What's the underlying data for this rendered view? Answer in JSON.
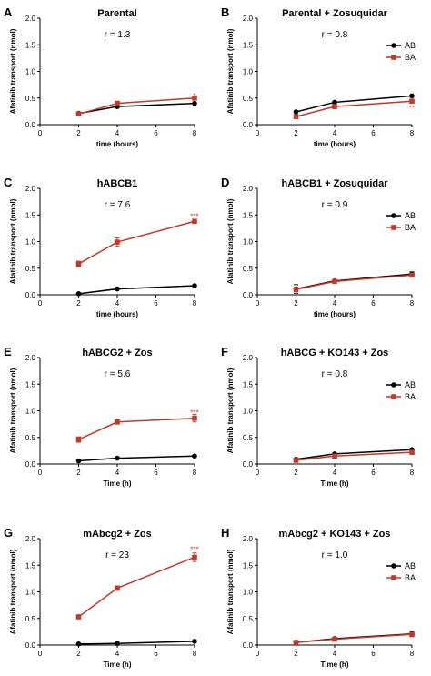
{
  "colors": {
    "AB": "#000000",
    "BA": "#c0392b"
  },
  "chart_data": [
    {
      "type": "line",
      "letter": "A",
      "title": "Parental",
      "ratio": "r = 1.3",
      "xlabel": "time (hours)",
      "ylabel": "Afatinib transport (nmol)",
      "xlim": [
        0,
        8
      ],
      "ylim": [
        0,
        2.0
      ],
      "xticks": [
        "0",
        "2",
        "4",
        "6",
        "8"
      ],
      "yticks": [
        "0.0",
        "0.5",
        "1.0",
        "1.5",
        "2.0"
      ],
      "legend": [],
      "series": [
        {
          "key": "AB",
          "x": [
            2,
            4,
            8
          ],
          "values": [
            0.21,
            0.34,
            0.4
          ],
          "err": [
            0,
            0,
            0
          ]
        },
        {
          "key": "BA",
          "x": [
            2,
            4,
            8
          ],
          "values": [
            0.2,
            0.4,
            0.5
          ],
          "err": [
            0,
            0.02,
            0.03
          ]
        }
      ],
      "annotations": [
        {
          "text": "*",
          "x": 8,
          "y": 0.55,
          "series": "BA"
        }
      ]
    },
    {
      "type": "line",
      "letter": "B",
      "title": "Parental + Zosuquidar",
      "ratio": "r = 0.8",
      "xlabel": "time (hours)",
      "ylabel": "Afatinib transport (nmol)",
      "xlim": [
        0,
        8
      ],
      "ylim": [
        0,
        2.0
      ],
      "xticks": [
        "0",
        "2",
        "4",
        "6",
        "8"
      ],
      "yticks": [
        "0.0",
        "0.5",
        "1.0",
        "1.5",
        "2.0"
      ],
      "legend": [
        "AB",
        "BA"
      ],
      "series": [
        {
          "key": "AB",
          "x": [
            2,
            4,
            8
          ],
          "values": [
            0.24,
            0.42,
            0.54
          ],
          "err": [
            0,
            0,
            0
          ]
        },
        {
          "key": "BA",
          "x": [
            2,
            4,
            8
          ],
          "values": [
            0.15,
            0.34,
            0.44
          ],
          "err": [
            0,
            0.04,
            0.02
          ]
        }
      ],
      "annotations": [
        {
          "text": "**",
          "x": 8,
          "y": 0.32,
          "series": "BA"
        }
      ]
    },
    {
      "type": "line",
      "letter": "C",
      "title": "hABCB1",
      "ratio": "r = 7.6",
      "xlabel": "time (hours)",
      "ylabel": "Afatinib transport (nmol)",
      "xlim": [
        0,
        8
      ],
      "ylim": [
        0,
        2.0
      ],
      "xticks": [
        "0",
        "2",
        "4",
        "6",
        "8"
      ],
      "yticks": [
        "0.0",
        "0.5",
        "1.0",
        "1.5",
        "2.0"
      ],
      "legend": [],
      "series": [
        {
          "key": "AB",
          "x": [
            2,
            4,
            8
          ],
          "values": [
            0.02,
            0.11,
            0.17
          ],
          "err": [
            0,
            0,
            0
          ]
        },
        {
          "key": "BA",
          "x": [
            2,
            4,
            8
          ],
          "values": [
            0.58,
            0.99,
            1.38
          ],
          "err": [
            0.05,
            0.08,
            0.03
          ]
        }
      ],
      "annotations": [
        {
          "text": "***",
          "x": 8,
          "y": 1.48,
          "series": "BA"
        }
      ]
    },
    {
      "type": "line",
      "letter": "D",
      "title": "hABCB1 + Zosuquidar",
      "ratio": "r = 0.9",
      "xlabel": "time (hours)",
      "ylabel": "Afatinib transport (nmol)",
      "xlim": [
        0,
        8
      ],
      "ylim": [
        0,
        2.0
      ],
      "xticks": [
        "0",
        "2",
        "4",
        "6",
        "8"
      ],
      "yticks": [
        "0.0",
        "0.5",
        "1.0",
        "1.5",
        "2.0"
      ],
      "legend": [
        "AB",
        "BA"
      ],
      "series": [
        {
          "key": "AB",
          "x": [
            2,
            4,
            8
          ],
          "values": [
            0.11,
            0.26,
            0.39
          ],
          "err": [
            0.08,
            0.02,
            0.04
          ]
        },
        {
          "key": "BA",
          "x": [
            2,
            4,
            8
          ],
          "values": [
            0.1,
            0.25,
            0.37
          ],
          "err": [
            0.04,
            0.02,
            0.03
          ]
        }
      ],
      "annotations": []
    },
    {
      "type": "line",
      "letter": "E",
      "title": "hABCG2 + Zos",
      "ratio": "r = 5.6",
      "xlabel": "Time (h)",
      "ylabel": "Afatinib transport (nmol)",
      "xlim": [
        0,
        8
      ],
      "ylim": [
        0,
        2.0
      ],
      "xticks": [
        "0",
        "2",
        "4",
        "6",
        "8"
      ],
      "yticks": [
        "0.0",
        "0.5",
        "1.0",
        "1.5",
        "2.0"
      ],
      "legend": [],
      "series": [
        {
          "key": "AB",
          "x": [
            2,
            4,
            8
          ],
          "values": [
            0.06,
            0.11,
            0.15
          ],
          "err": [
            0,
            0,
            0
          ]
        },
        {
          "key": "BA",
          "x": [
            2,
            4,
            8
          ],
          "values": [
            0.46,
            0.79,
            0.86
          ],
          "err": [
            0.05,
            0.04,
            0.07
          ]
        }
      ],
      "annotations": [
        {
          "text": "***",
          "x": 8,
          "y": 0.97,
          "series": "BA"
        }
      ]
    },
    {
      "type": "line",
      "letter": "F",
      "title": "hABCG + KO143 + Zos",
      "ratio": "r = 0.8",
      "xlabel": "Time (h)",
      "ylabel": "Afatinib transport (nmol)",
      "xlim": [
        0,
        8
      ],
      "ylim": [
        0,
        2.0
      ],
      "xticks": [
        "0",
        "2",
        "4",
        "6",
        "8"
      ],
      "yticks": [
        "0.0",
        "0.5",
        "1.0",
        "1.5",
        "2.0"
      ],
      "legend": [
        "AB",
        "BA"
      ],
      "series": [
        {
          "key": "AB",
          "x": [
            2,
            4,
            8
          ],
          "values": [
            0.09,
            0.19,
            0.27
          ],
          "err": [
            0,
            0.01,
            0.01
          ]
        },
        {
          "key": "BA",
          "x": [
            2,
            4,
            8
          ],
          "values": [
            0.07,
            0.15,
            0.22
          ],
          "err": [
            0,
            0.01,
            0.01
          ]
        }
      ],
      "annotations": []
    },
    {
      "type": "line",
      "letter": "G",
      "title": "mAbcg2 + Zos",
      "ratio": "r = 23",
      "xlabel": "Time (h)",
      "ylabel": "Afatinib transport (nmol)",
      "xlim": [
        0,
        8
      ],
      "ylim": [
        0,
        2.0
      ],
      "xticks": [
        "0",
        "2",
        "4",
        "6",
        "8"
      ],
      "yticks": [
        "0.0",
        "0.5",
        "1.0",
        "1.5",
        "2.0"
      ],
      "legend": [],
      "series": [
        {
          "key": "AB",
          "x": [
            2,
            4,
            8
          ],
          "values": [
            0.02,
            0.03,
            0.07
          ],
          "err": [
            0,
            0,
            0
          ]
        },
        {
          "key": "BA",
          "x": [
            2,
            4,
            8
          ],
          "values": [
            0.53,
            1.07,
            1.65
          ],
          "err": [
            0.02,
            0.04,
            0.08
          ]
        }
      ],
      "annotations": [
        {
          "text": "***",
          "x": 8,
          "y": 1.8,
          "series": "BA"
        }
      ]
    },
    {
      "type": "line",
      "letter": "H",
      "title": "mAbcg2 + KO143 + Zos",
      "ratio": "r = 1.0",
      "xlabel": "Time (h)",
      "ylabel": "Afatinib transport (nmol)",
      "xlim": [
        0,
        8
      ],
      "ylim": [
        0,
        2.0
      ],
      "xticks": [
        "0",
        "2",
        "4",
        "6",
        "8"
      ],
      "yticks": [
        "0.0",
        "0.5",
        "1.0",
        "1.5",
        "2.0"
      ],
      "legend": [
        "AB",
        "BA"
      ],
      "series": [
        {
          "key": "AB",
          "x": [
            2,
            4,
            8
          ],
          "values": [
            0.05,
            0.12,
            0.21
          ],
          "err": [
            0,
            0.01,
            0.05
          ]
        },
        {
          "key": "BA",
          "x": [
            2,
            4,
            8
          ],
          "values": [
            0.05,
            0.11,
            0.2
          ],
          "err": [
            0,
            0.01,
            0.03
          ]
        }
      ],
      "annotations": []
    }
  ]
}
